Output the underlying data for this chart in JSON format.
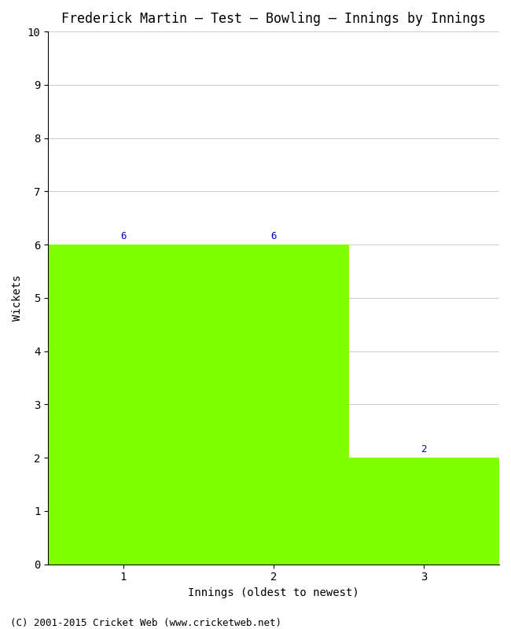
{
  "title": "Frederick Martin – Test – Bowling – Innings by Innings",
  "xlabel": "Innings (oldest to newest)",
  "ylabel": "Wickets",
  "categories": [
    "1",
    "2",
    "3"
  ],
  "values": [
    6,
    6,
    2
  ],
  "bar_color": "#7FFF00",
  "bar_edge_color": "#7FFF00",
  "value_label_color": "#0000CC",
  "ylim": [
    0,
    10
  ],
  "yticks": [
    0,
    1,
    2,
    3,
    4,
    5,
    6,
    7,
    8,
    9,
    10
  ],
  "background_color": "#ffffff",
  "title_fontsize": 12,
  "axis_label_fontsize": 10,
  "tick_fontsize": 10,
  "value_label_fontsize": 9,
  "footer_text": "(C) 2001-2015 Cricket Web (www.cricketweb.net)",
  "footer_fontsize": 9,
  "grid_color": "#cccccc"
}
